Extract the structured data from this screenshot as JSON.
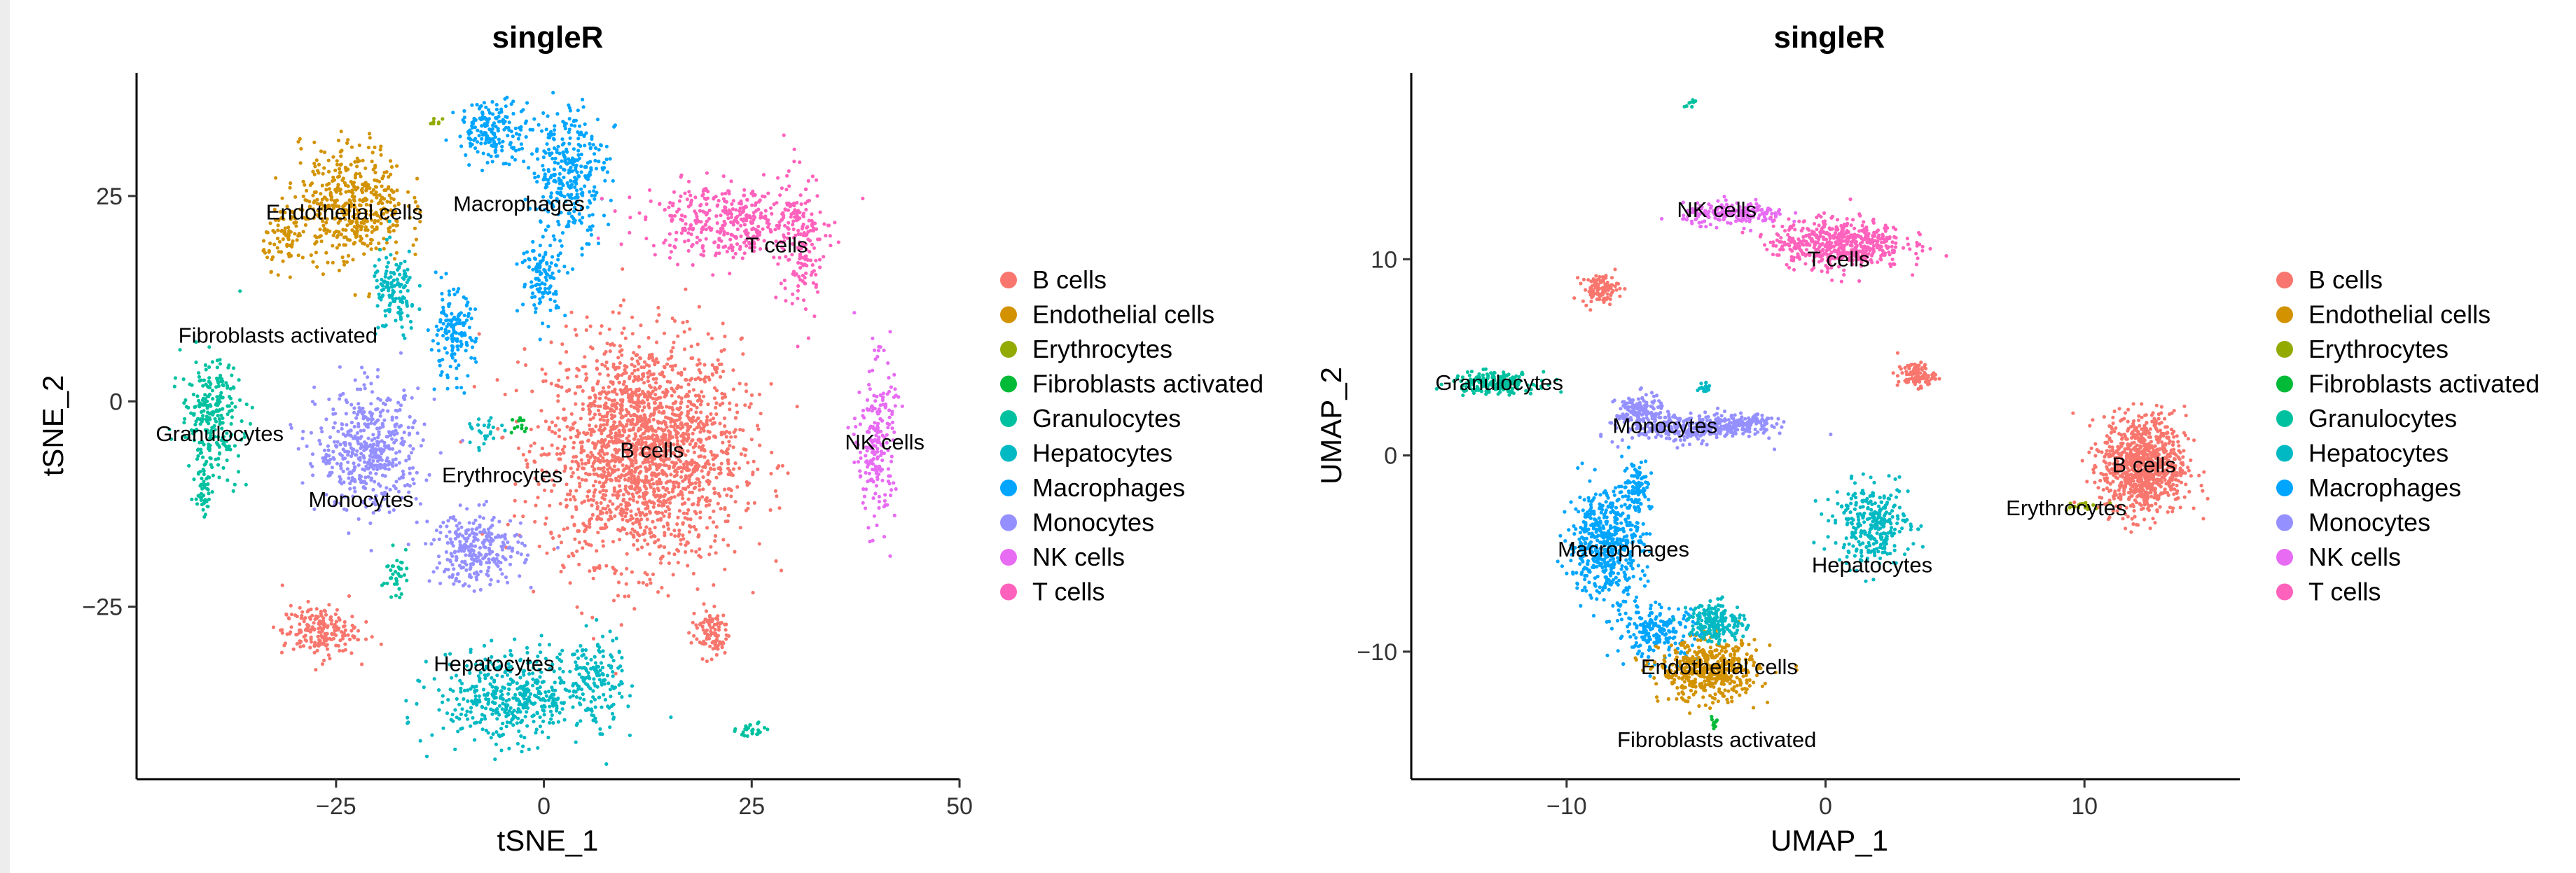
{
  "colors": {
    "B cells": "#F8766D",
    "Endothelial cells": "#D39200",
    "Erythrocytes": "#93AA00",
    "Fibroblasts activated": "#00BA38",
    "Granulocytes": "#00C19F",
    "Hepatocytes": "#00B9C3",
    "Macrophages": "#00A5FF",
    "Monocytes": "#9590FF",
    "NK cells": "#E76BF3",
    "T cells": "#FF62BC"
  },
  "chart_data": [
    {
      "type": "scatter",
      "title": "singleR",
      "xlabel": "tSNE_1",
      "ylabel": "tSNE_2",
      "xlim": [
        -49,
        50
      ],
      "ylim": [
        -46,
        40
      ],
      "xticks": [
        -25,
        0,
        25,
        50
      ],
      "yticks": [
        -25,
        0,
        25
      ],
      "xtick_labels": [
        "−25",
        "0",
        "25",
        "50"
      ],
      "ytick_labels": [
        "−25",
        "0",
        "25"
      ],
      "legend": {
        "position": "right",
        "entries": [
          "B cells",
          "Endothelial cells",
          "Erythrocytes",
          "Fibroblasts activated",
          "Granulocytes",
          "Hepatocytes",
          "Macrophages",
          "Monocytes",
          "NK cells",
          "T cells"
        ]
      },
      "clusters": [
        {
          "cell_type": "B cells",
          "cx": 12,
          "cy": -6,
          "rx": 13,
          "ry": 15,
          "n": 2000
        },
        {
          "cell_type": "B cells",
          "cx": -27,
          "cy": -28,
          "rx": 5,
          "ry": 3.5,
          "n": 200
        },
        {
          "cell_type": "B cells",
          "cx": 20,
          "cy": -28,
          "rx": 2.5,
          "ry": 3.5,
          "n": 100
        },
        {
          "cell_type": "Endothelial cells",
          "cx": -23,
          "cy": 24,
          "rx": 7,
          "ry": 8,
          "n": 450
        },
        {
          "cell_type": "Endothelial cells",
          "cx": -31,
          "cy": 20,
          "rx": 3,
          "ry": 4,
          "n": 80
        },
        {
          "cell_type": "Hepatocytes",
          "cx": -18,
          "cy": 13,
          "rx": 3,
          "ry": 6,
          "n": 130
        },
        {
          "cell_type": "Hepatocytes",
          "cx": -4,
          "cy": -36,
          "rx": 10,
          "ry": 6,
          "n": 450
        },
        {
          "cell_type": "Hepatocytes",
          "cx": 6,
          "cy": -34,
          "rx": 4,
          "ry": 6,
          "n": 150
        },
        {
          "cell_type": "Hepatocytes",
          "cx": -7,
          "cy": -4,
          "rx": 2,
          "ry": 2,
          "n": 25
        },
        {
          "cell_type": "Macrophages",
          "cx": -6,
          "cy": 33,
          "rx": 5,
          "ry": 4,
          "n": 180
        },
        {
          "cell_type": "Macrophages",
          "cx": 3,
          "cy": 28,
          "rx": 5,
          "ry": 9,
          "n": 320
        },
        {
          "cell_type": "Macrophages",
          "cx": -11,
          "cy": 8,
          "rx": 3,
          "ry": 6,
          "n": 150
        },
        {
          "cell_type": "Macrophages",
          "cx": 0,
          "cy": 15,
          "rx": 3,
          "ry": 5,
          "n": 120
        },
        {
          "cell_type": "Monocytes",
          "cx": -21,
          "cy": -6,
          "rx": 7,
          "ry": 8,
          "n": 480
        },
        {
          "cell_type": "Monocytes",
          "cx": -8,
          "cy": -18,
          "rx": 6,
          "ry": 5,
          "n": 280
        },
        {
          "cell_type": "T cells",
          "cx": 22,
          "cy": 22,
          "rx": 11,
          "ry": 5,
          "n": 380
        },
        {
          "cell_type": "T cells",
          "cx": 31,
          "cy": 19,
          "rx": 3,
          "ry": 10,
          "n": 160
        },
        {
          "cell_type": "NK cells",
          "cx": 40,
          "cy": -5,
          "rx": 2.5,
          "ry": 11,
          "n": 220
        },
        {
          "cell_type": "Granulocytes",
          "cx": -40,
          "cy": -2,
          "rx": 4,
          "ry": 8,
          "n": 260
        },
        {
          "cell_type": "Granulocytes",
          "cx": -41,
          "cy": -11,
          "rx": 1,
          "ry": 3,
          "n": 40
        },
        {
          "cell_type": "Granulocytes",
          "cx": -18,
          "cy": -21,
          "rx": 1.5,
          "ry": 3,
          "n": 35
        },
        {
          "cell_type": "Granulocytes",
          "cx": 25,
          "cy": -40,
          "rx": 2,
          "ry": 1,
          "n": 25
        },
        {
          "cell_type": "Fibroblasts activated",
          "cx": -3,
          "cy": -3,
          "rx": 1,
          "ry": 1.5,
          "n": 12
        },
        {
          "cell_type": "Erythrocytes",
          "cx": -13,
          "cy": 34,
          "rx": 1,
          "ry": 1,
          "n": 8
        }
      ],
      "labels": [
        {
          "text": "Endothelial cells",
          "x": -24,
          "y": 23
        },
        {
          "text": "Macrophages",
          "x": -3,
          "y": 24
        },
        {
          "text": "T cells",
          "x": 28,
          "y": 19
        },
        {
          "text": "Fibroblasts activated",
          "x": -32,
          "y": 8
        },
        {
          "text": "Granulocytes",
          "x": -39,
          "y": -4
        },
        {
          "text": "B cells",
          "x": 13,
          "y": -6
        },
        {
          "text": "NK cells",
          "x": 41,
          "y": -5
        },
        {
          "text": "Erythrocytes",
          "x": -5,
          "y": -9
        },
        {
          "text": "Monocytes",
          "x": -22,
          "y": -12
        },
        {
          "text": "Hepatocytes",
          "x": -6,
          "y": -32
        }
      ]
    },
    {
      "type": "scatter",
      "title": "singleR",
      "xlabel": "UMAP_1",
      "ylabel": "UMAP_2",
      "xlim": [
        -16,
        16
      ],
      "ylim": [
        -16.5,
        19.5
      ],
      "xticks": [
        -10,
        0,
        10
      ],
      "yticks": [
        -10,
        0,
        10
      ],
      "xtick_labels": [
        "−10",
        "0",
        "10"
      ],
      "ytick_labels": [
        "−10",
        "0",
        "10"
      ],
      "legend": {
        "position": "right",
        "entries": [
          "B cells",
          "Endothelial cells",
          "Erythrocytes",
          "Fibroblasts activated",
          "Granulocytes",
          "Hepatocytes",
          "Macrophages",
          "Monocytes",
          "NK cells",
          "T cells"
        ]
      },
      "clusters": [
        {
          "cell_type": "B cells",
          "cx": 12.3,
          "cy": -0.5,
          "rx": 1.8,
          "ry": 2.8,
          "n": 900
        },
        {
          "cell_type": "B cells",
          "cx": -8.7,
          "cy": 8.5,
          "rx": 0.8,
          "ry": 0.8,
          "n": 100
        },
        {
          "cell_type": "B cells",
          "cx": 3.5,
          "cy": 4.1,
          "rx": 0.8,
          "ry": 0.7,
          "n": 100
        },
        {
          "cell_type": "T cells",
          "cx": 0.5,
          "cy": 10.8,
          "rx": 2.8,
          "ry": 1.4,
          "n": 550
        },
        {
          "cell_type": "NK cells",
          "cx": -3.5,
          "cy": 12.3,
          "rx": 2.2,
          "ry": 0.6,
          "n": 200
        },
        {
          "cell_type": "Granulocytes",
          "cx": -12.8,
          "cy": 3.7,
          "rx": 1.8,
          "ry": 0.6,
          "n": 200
        },
        {
          "cell_type": "Granulocytes",
          "cx": -5.2,
          "cy": 17.8,
          "rx": 0.2,
          "ry": 0.3,
          "n": 8
        },
        {
          "cell_type": "Monocytes",
          "cx": -5.2,
          "cy": 1.4,
          "rx": 2.8,
          "ry": 0.8,
          "n": 300
        },
        {
          "cell_type": "Monocytes",
          "cx": -7.2,
          "cy": 2.2,
          "rx": 1,
          "ry": 1,
          "n": 150
        },
        {
          "cell_type": "Monocytes",
          "cx": -3,
          "cy": 1.6,
          "rx": 1.2,
          "ry": 0.5,
          "n": 100
        },
        {
          "cell_type": "Macrophages",
          "cx": -8.5,
          "cy": -4.5,
          "rx": 1.6,
          "ry": 3,
          "n": 520
        },
        {
          "cell_type": "Macrophages",
          "cx": -6.5,
          "cy": -9,
          "rx": 1.8,
          "ry": 1.5,
          "n": 200
        },
        {
          "cell_type": "Macrophages",
          "cx": -7.3,
          "cy": -1.5,
          "rx": 0.6,
          "ry": 1.5,
          "n": 100
        },
        {
          "cell_type": "Endothelial cells",
          "cx": -4.5,
          "cy": -11,
          "rx": 2.1,
          "ry": 1.7,
          "n": 500
        },
        {
          "cell_type": "Hepatocytes",
          "cx": -4.2,
          "cy": -8.5,
          "rx": 1.2,
          "ry": 1.1,
          "n": 200
        },
        {
          "cell_type": "Hepatocytes",
          "cx": 1.8,
          "cy": -3.5,
          "rx": 1.6,
          "ry": 2.2,
          "n": 300
        },
        {
          "cell_type": "Hepatocytes",
          "cx": -4.7,
          "cy": 3.5,
          "rx": 0.3,
          "ry": 0.3,
          "n": 20
        },
        {
          "cell_type": "Erythrocytes",
          "cx": 9.8,
          "cy": -2.6,
          "rx": 0.8,
          "ry": 0.3,
          "n": 20
        },
        {
          "cell_type": "Fibroblasts activated",
          "cx": -4.3,
          "cy": -13.6,
          "rx": 0.2,
          "ry": 0.4,
          "n": 10
        }
      ],
      "labels": [
        {
          "text": "NK cells",
          "x": -4.2,
          "y": 12.5
        },
        {
          "text": "T cells",
          "x": 0.5,
          "y": 10
        },
        {
          "text": "Granulocytes",
          "x": -12.6,
          "y": 3.7
        },
        {
          "text": "Monocytes",
          "x": -6.2,
          "y": 1.5
        },
        {
          "text": "B cells",
          "x": 12.3,
          "y": -0.5
        },
        {
          "text": "Erythrocytes",
          "x": 9.3,
          "y": -2.7
        },
        {
          "text": "Macrophages",
          "x": -7.8,
          "y": -4.8
        },
        {
          "text": "Hepatocytes",
          "x": 1.8,
          "y": -5.6
        },
        {
          "text": "Endothelial cells",
          "x": -4.1,
          "y": -10.8
        },
        {
          "text": "Fibroblasts activated",
          "x": -4.2,
          "y": -14.5
        }
      ]
    }
  ]
}
